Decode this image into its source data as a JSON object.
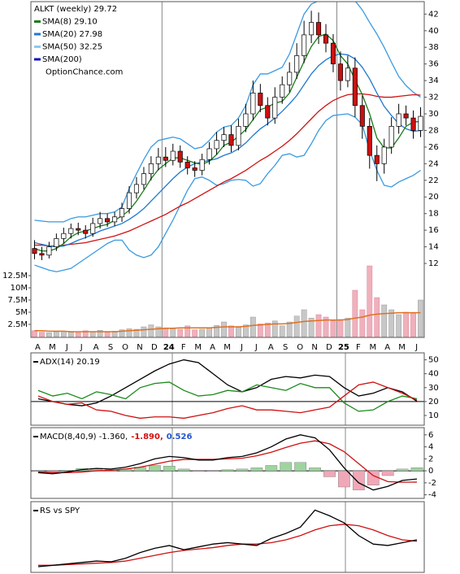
{
  "chart_data": [
    {
      "type": "candlestick",
      "legend": [
        {
          "text": "ALKT (weekly) 29.72",
          "color": null
        },
        {
          "text": "SMA(8) 29.10",
          "color": "#1a7a1a"
        },
        {
          "text": "SMA(20) 27.98",
          "color": "#1e78d0"
        },
        {
          "text": "SMA(50) 32.25",
          "color": "#8ec8f0"
        },
        {
          "text": "SMA(200)",
          "color": "#1010c0"
        },
        {
          "text": "OptionChance.com",
          "color": null
        }
      ],
      "categories": [
        "A",
        null,
        "M",
        null,
        "J",
        null,
        "J",
        null,
        "A",
        null,
        "S",
        null,
        "O",
        null,
        "N",
        null,
        "D",
        null,
        "24",
        null,
        "F",
        null,
        "M",
        null,
        "A",
        null,
        "M",
        null,
        "J",
        null,
        "J",
        null,
        "A",
        null,
        "S",
        null,
        "O",
        null,
        "N",
        null,
        "D",
        null,
        "25",
        null,
        "F",
        null,
        "M",
        null,
        "A",
        null,
        "M",
        null,
        "J",
        null
      ],
      "open": [
        13.8,
        13.2,
        13.0,
        14.0,
        15.0,
        15.6,
        16.2,
        16.0,
        15.6,
        16.8,
        17.4,
        17.0,
        17.6,
        18.6,
        20.5,
        21.5,
        22.8,
        24.0,
        24.8,
        24.4,
        25.5,
        24.2,
        23.5,
        23.2,
        24.5,
        25.8,
        26.8,
        27.5,
        26.2,
        28.5,
        30.0,
        32.5,
        31.0,
        29.5,
        32.0,
        33.5,
        35.0,
        37.0,
        39.5,
        41.0,
        39.5,
        38.5,
        36.0,
        34.0,
        35.5,
        31.0,
        28.5,
        25.0,
        24.0,
        26.0,
        28.5,
        30.0,
        29.5,
        28.0
      ],
      "high": [
        14.8,
        14.0,
        14.6,
        15.6,
        16.3,
        16.8,
        16.9,
        16.6,
        17.5,
        18.2,
        18.0,
        18.2,
        19.3,
        21.3,
        22.4,
        23.6,
        24.9,
        25.9,
        26.0,
        26.4,
        26.2,
        24.9,
        24.3,
        25.2,
        26.6,
        27.8,
        28.4,
        28.6,
        29.4,
        31.2,
        34.0,
        33.6,
        32.0,
        33.2,
        34.5,
        36.2,
        38.5,
        41.2,
        42.4,
        42.2,
        40.8,
        39.6,
        37.5,
        37.0,
        36.8,
        32.2,
        29.5,
        26.2,
        27.0,
        29.6,
        31.2,
        31.0,
        30.4,
        30.8
      ],
      "low": [
        12.5,
        12.4,
        12.6,
        13.5,
        14.4,
        15.0,
        15.4,
        15.0,
        15.2,
        16.2,
        16.4,
        16.5,
        17.0,
        18.0,
        19.8,
        20.9,
        22.0,
        23.2,
        23.6,
        23.8,
        23.5,
        22.7,
        22.4,
        22.6,
        23.9,
        25.1,
        26.0,
        25.4,
        25.6,
        27.8,
        29.2,
        30.2,
        28.6,
        28.8,
        31.2,
        32.6,
        34.2,
        36.1,
        38.5,
        38.4,
        37.4,
        35.0,
        32.8,
        33.2,
        29.6,
        27.0,
        23.4,
        21.9,
        22.8,
        25.2,
        27.6,
        28.6,
        27.0,
        27.2
      ],
      "close": [
        13.2,
        13.0,
        14.0,
        15.0,
        15.6,
        16.2,
        16.0,
        15.6,
        16.8,
        17.4,
        17.0,
        17.6,
        18.6,
        20.5,
        21.5,
        22.8,
        24.0,
        24.8,
        24.4,
        25.5,
        24.2,
        23.5,
        23.2,
        24.5,
        25.8,
        26.8,
        27.5,
        26.2,
        28.5,
        30.0,
        32.5,
        31.0,
        29.5,
        32.0,
        33.5,
        35.0,
        37.0,
        39.5,
        41.0,
        39.5,
        38.5,
        36.0,
        34.0,
        35.5,
        31.0,
        28.5,
        25.0,
        24.0,
        26.0,
        28.5,
        30.0,
        29.5,
        28.0,
        29.7
      ],
      "up_color": "#ffffff",
      "down_color": "#cc1111",
      "series": [
        {
          "color": "#d01010",
          "values": [
            14.2,
            14.2,
            14.1,
            14.1,
            14.2,
            14.3,
            14.4,
            14.5,
            14.7,
            14.9,
            15.1,
            15.3,
            15.6,
            15.9,
            16.3,
            16.7,
            17.1,
            17.5,
            17.9,
            18.4,
            18.9,
            19.3,
            19.8,
            20.3,
            20.8,
            21.3,
            21.8,
            22.2,
            22.7,
            23.2,
            23.8,
            24.4,
            24.9,
            25.5,
            26.1,
            26.8,
            27.6,
            28.5,
            29.4,
            30.3,
            31.0,
            31.6,
            32.0,
            32.3,
            32.4,
            32.4,
            32.3,
            32.1,
            32.0,
            32.0,
            32.1,
            32.2,
            32.3,
            32.25
          ]
        },
        {
          "color": "#1e78d0",
          "values": [
            14.5,
            14.3,
            14.1,
            14.0,
            14.1,
            14.4,
            14.8,
            15.1,
            15.5,
            15.9,
            16.2,
            16.5,
            16.8,
            17.3,
            17.9,
            18.6,
            19.5,
            20.4,
            21.3,
            22.2,
            23.0,
            23.6,
            24.0,
            24.2,
            24.4,
            24.6,
            25.0,
            25.3,
            25.8,
            26.5,
            27.4,
            28.2,
            28.8,
            29.5,
            30.3,
            31.2,
            32.2,
            33.5,
            34.8,
            35.8,
            36.5,
            37.0,
            37.2,
            37.1,
            36.6,
            35.6,
            34.2,
            32.5,
            30.9,
            29.8,
            28.8,
            28.2,
            27.9,
            27.98
          ]
        },
        {
          "color": "#1a7a1a",
          "values": [
            13.8,
            13.5,
            13.5,
            13.8,
            14.4,
            15.2,
            15.7,
            15.9,
            16.2,
            16.5,
            16.7,
            17.2,
            17.7,
            18.4,
            19.5,
            20.8,
            22.2,
            23.3,
            24.0,
            24.7,
            24.7,
            24.4,
            24.1,
            23.9,
            24.3,
            25.1,
            26.2,
            26.6,
            27.3,
            28.1,
            29.3,
            30.5,
            30.8,
            31.3,
            31.5,
            32.5,
            34.4,
            36.3,
            38.1,
            39.3,
            39.6,
            38.8,
            37.0,
            36.0,
            34.1,
            32.3,
            30.0,
            27.1,
            25.9,
            25.9,
            27.1,
            28.5,
            29.0,
            29.1
          ]
        }
      ],
      "bands": {
        "color": "#3a9ae0",
        "upper": [
          17.2,
          17.1,
          17.0,
          17.0,
          17.0,
          17.4,
          17.6,
          17.6,
          17.8,
          18.0,
          18.0,
          18.2,
          18.8,
          21.0,
          22.8,
          24.5,
          26.0,
          26.8,
          27.0,
          27.2,
          27.0,
          26.4,
          25.8,
          26.0,
          26.8,
          27.8,
          28.4,
          28.6,
          29.5,
          31.0,
          33.5,
          34.8,
          34.8,
          35.2,
          35.6,
          37.2,
          39.6,
          42.0,
          43.2,
          43.6,
          43.8,
          44.2,
          44.5,
          44.2,
          43.6,
          42.5,
          41.0,
          39.6,
          38.0,
          36.2,
          34.5,
          33.4,
          32.6,
          32.0
        ],
        "lower": [
          11.8,
          11.5,
          11.2,
          11.0,
          11.2,
          11.4,
          12.0,
          12.6,
          13.2,
          13.8,
          14.4,
          14.8,
          14.8,
          13.6,
          13.0,
          12.7,
          13.0,
          14.0,
          15.6,
          17.2,
          19.0,
          20.8,
          22.2,
          22.4,
          22.0,
          21.4,
          21.6,
          22.0,
          22.1,
          22.0,
          21.3,
          21.6,
          22.8,
          23.8,
          25.0,
          25.2,
          24.8,
          25.0,
          26.4,
          28.0,
          29.2,
          29.8,
          29.9,
          30.0,
          29.6,
          28.7,
          25.6,
          23.2,
          21.4,
          21.2,
          21.8,
          22.2,
          22.6,
          23.2
        ]
      },
      "ylim": [
        3.1,
        43.5
      ],
      "yticks": [
        12,
        14,
        16,
        18,
        20,
        22,
        24,
        26,
        28,
        30,
        32,
        34,
        36,
        38,
        40,
        42
      ],
      "volume": {
        "up_color": "#c8c8c8",
        "down_color": "#f0b0bc",
        "average_color": "#e07020",
        "values": [
          1.2,
          0.9,
          0.8,
          1.0,
          1.1,
          0.9,
          0.8,
          1.2,
          1.0,
          1.3,
          0.9,
          1.1,
          1.4,
          1.6,
          1.5,
          2.0,
          2.4,
          2.0,
          1.8,
          1.6,
          1.5,
          2.2,
          1.4,
          1.5,
          1.8,
          2.3,
          3.0,
          2.2,
          1.9,
          2.4,
          4.0,
          2.6,
          2.8,
          3.2,
          2.2,
          3.0,
          4.2,
          5.5,
          3.8,
          4.5,
          4.0,
          3.2,
          3.5,
          3.8,
          9.5,
          5.5,
          14.5,
          8.0,
          6.5,
          5.5,
          4.5,
          5.0,
          4.8,
          7.5
        ],
        "average": [
          1.2,
          1.2,
          1.1,
          1.1,
          1.1,
          1.0,
          1.0,
          1.0,
          1.0,
          1.0,
          1.0,
          1.0,
          1.1,
          1.2,
          1.3,
          1.4,
          1.5,
          1.6,
          1.7,
          1.7,
          1.8,
          1.8,
          1.8,
          1.8,
          1.8,
          1.9,
          2.0,
          2.0,
          2.0,
          2.1,
          2.3,
          2.4,
          2.5,
          2.6,
          2.6,
          2.7,
          2.9,
          3.1,
          3.2,
          3.3,
          3.4,
          3.4,
          3.4,
          3.5,
          3.8,
          4.0,
          4.4,
          4.6,
          4.7,
          4.8,
          4.9,
          4.9,
          4.9,
          4.9
        ],
        "ylim": [
          0,
          12.5
        ],
        "yticks": [
          {
            "value": 2.5,
            "label": "2.5M"
          },
          {
            "value": 5,
            "label": "5M"
          },
          {
            "value": 7.5,
            "label": "7.5M"
          },
          {
            "value": 10,
            "label": "10M"
          },
          {
            "value": 12.5,
            "label": "12.5M"
          }
        ]
      }
    },
    {
      "type": "line",
      "title": [
        {
          "text": "ADX(14) 20.19",
          "color": "#000000"
        }
      ],
      "reference": 20,
      "ylim": [
        3,
        55
      ],
      "yticks": [
        10,
        20,
        30,
        40,
        50
      ],
      "series": [
        {
          "color": "#000000",
          "values": [
            22,
            20,
            18,
            17,
            19,
            24,
            30,
            36,
            42,
            47,
            50,
            48,
            40,
            32,
            27,
            30,
            36,
            38,
            37,
            39,
            38,
            30,
            24,
            26,
            30,
            27,
            20.19
          ]
        },
        {
          "color": "#1a8a1a",
          "values": [
            28,
            24,
            26,
            22,
            27,
            25,
            22,
            30,
            33,
            34,
            28,
            24,
            25,
            28,
            27,
            32,
            30,
            28,
            33,
            30,
            30,
            19,
            13,
            14,
            20,
            24,
            22
          ]
        },
        {
          "color": "#d01010",
          "values": [
            24,
            20,
            18,
            19,
            14,
            13,
            10,
            8,
            9,
            9,
            8,
            10,
            12,
            15,
            17,
            14,
            14,
            13,
            12,
            14,
            16,
            24,
            32,
            34,
            30,
            26,
            21
          ]
        }
      ]
    },
    {
      "type": "line",
      "title": [
        {
          "text": "MACD(8,40,9) -1.360,",
          "color": "#000000"
        },
        {
          "text": "-1.890,",
          "color": "#d01010"
        },
        {
          "text": "0.526",
          "color": "#2255cc"
        }
      ],
      "ylim": [
        -4.6,
        7.2
      ],
      "yticks": [
        -4,
        -2,
        0,
        2,
        4,
        6
      ],
      "histogram": {
        "up_color": "#9ed49e",
        "down_color": "#f0a8b8",
        "values": [
          -0.1,
          -0.2,
          0.1,
          0.4,
          0.4,
          0.2,
          0.3,
          0.6,
          0.9,
          0.8,
          0.3,
          -0.1,
          -0.1,
          0.2,
          0.3,
          0.5,
          0.9,
          1.4,
          1.4,
          0.5,
          -1.0,
          -2.7,
          -3.2,
          -2.4,
          -0.8,
          0.3,
          0.526
        ]
      },
      "series": [
        {
          "color": "#d01010",
          "values": [
            -0.2,
            -0.3,
            -0.3,
            -0.2,
            0,
            0.1,
            0.3,
            0.6,
            1.1,
            1.6,
            1.9,
            1.9,
            1.9,
            2.0,
            2.1,
            2.5,
            3.1,
            3.9,
            4.6,
            5.0,
            4.5,
            3.2,
            1.2,
            -0.8,
            -1.8,
            -1.9,
            -1.89
          ]
        },
        {
          "color": "#000000",
          "values": [
            -0.3,
            -0.5,
            -0.2,
            0.2,
            0.4,
            0.3,
            0.6,
            1.2,
            2.0,
            2.4,
            2.2,
            1.8,
            1.8,
            2.2,
            2.4,
            3.0,
            4.0,
            5.3,
            6.0,
            5.5,
            3.5,
            0.5,
            -2.0,
            -3.2,
            -2.6,
            -1.6,
            -1.36
          ]
        }
      ]
    },
    {
      "type": "line",
      "title": [
        {
          "text": "RS vs SPY",
          "color": "#000000"
        }
      ],
      "ylim": [
        0,
        100
      ],
      "yticks": [],
      "series": [
        {
          "color": "#d01010",
          "values": [
            10,
            10,
            11,
            12,
            13,
            14,
            16,
            20,
            24,
            28,
            31,
            33,
            35,
            38,
            40,
            40,
            42,
            46,
            52,
            60,
            66,
            68,
            66,
            60,
            52,
            46,
            44
          ]
        },
        {
          "color": "#000000",
          "values": [
            8,
            10,
            12,
            14,
            16,
            15,
            20,
            28,
            34,
            38,
            32,
            36,
            40,
            42,
            40,
            38,
            48,
            55,
            64,
            88,
            80,
            70,
            52,
            40,
            38,
            42,
            46
          ]
        }
      ]
    }
  ]
}
